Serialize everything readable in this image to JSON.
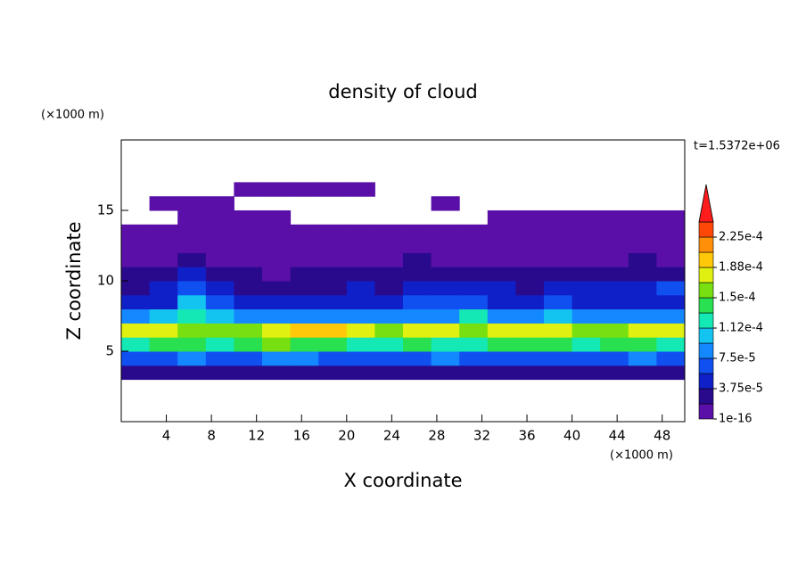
{
  "chart_data": {
    "type": "contour",
    "title": "density of cloud",
    "x_unit": "(×1000 m)",
    "y_unit": "(×1000 m)",
    "xlabel": "X coordinate",
    "ylabel": "Z coordinate",
    "annotation": "t=1.5372e+06",
    "xlim": [
      0,
      50
    ],
    "ylim": [
      0,
      20
    ],
    "xticks": [
      4,
      8,
      12,
      16,
      20,
      24,
      28,
      32,
      36,
      40,
      44,
      48
    ],
    "yticks": [
      5,
      10,
      15
    ],
    "x": [
      1.25,
      3.75,
      6.25,
      8.75,
      11.25,
      13.75,
      16.25,
      18.75,
      21.25,
      23.75,
      26.25,
      28.75,
      31.25,
      33.75,
      36.25,
      38.75,
      41.25,
      43.75,
      46.25,
      48.75
    ],
    "z": [
      3.5,
      4.5,
      5.5,
      6.5,
      7.5,
      8.5,
      9.5,
      10.5,
      11.5,
      12.5,
      13.5,
      14.5,
      15.5,
      16.5
    ],
    "values": [
      [
        2e-05,
        2.5e-05,
        2e-05,
        3e-05,
        2e-05,
        2.5e-05,
        2e-05,
        2e-05,
        2.5e-05,
        2e-05,
        2e-05,
        2.5e-05,
        2e-05,
        2e-05,
        2.5e-05,
        2e-05,
        3e-05,
        2e-05,
        2.5e-05,
        2e-05
      ],
      [
        7e-05,
        6.5e-05,
        8e-05,
        7e-05,
        6e-05,
        7.5e-05,
        8e-05,
        7e-05,
        7e-05,
        6.5e-05,
        7e-05,
        7.5e-05,
        7e-05,
        6.5e-05,
        7e-05,
        7e-05,
        6e-05,
        7e-05,
        7.5e-05,
        7e-05
      ],
      [
        0.00013,
        0.00014,
        0.000145,
        0.00012,
        0.000135,
        0.00015,
        0.000145,
        0.00014,
        0.00013,
        0.000125,
        0.000135,
        0.00013,
        0.00012,
        0.00014,
        0.000145,
        0.000135,
        0.00013,
        0.00014,
        0.000135,
        0.00013
      ],
      [
        0.00017,
        0.000175,
        0.00016,
        0.000155,
        0.000165,
        0.000175,
        0.00019,
        0.000195,
        0.00018,
        0.00016,
        0.00017,
        0.000175,
        0.00015,
        0.00017,
        0.00018,
        0.000175,
        0.00016,
        0.000165,
        0.00017,
        0.000175
      ],
      [
        9e-05,
        0.0001,
        0.00013,
        0.00011,
        8e-05,
        9e-05,
        8.5e-05,
        9e-05,
        8e-05,
        7.5e-05,
        8e-05,
        9e-05,
        0.000115,
        8e-05,
        7.5e-05,
        0.000105,
        8e-05,
        7.5e-05,
        8.5e-05,
        9e-05
      ],
      [
        5e-05,
        5.5e-05,
        0.00011,
        7e-05,
        5e-05,
        4.5e-05,
        5e-05,
        5.5e-05,
        5e-05,
        4.5e-05,
        6e-05,
        6.5e-05,
        7e-05,
        5e-05,
        4.5e-05,
        7e-05,
        5e-05,
        4.5e-05,
        5e-05,
        5.5e-05
      ],
      [
        3.5e-05,
        4e-05,
        6.5e-05,
        5e-05,
        3.5e-05,
        3e-05,
        3.5e-05,
        3e-05,
        4e-05,
        3e-05,
        4.5e-05,
        5e-05,
        5.5e-05,
        4e-05,
        3.5e-05,
        4e-05,
        4.5e-05,
        5e-05,
        5.5e-05,
        6e-05
      ],
      [
        2e-05,
        2.5e-05,
        4e-05,
        3e-05,
        2e-05,
        1.5e-05,
        2e-05,
        2.5e-05,
        2e-05,
        2e-05,
        3e-05,
        2.5e-05,
        3e-05,
        2e-05,
        2e-05,
        2.5e-05,
        2e-05,
        3e-05,
        2.5e-05,
        2e-05
      ],
      [
        1.5e-05,
        1e-05,
        2e-05,
        1.5e-05,
        1e-05,
        1e-05,
        1.5e-05,
        1e-05,
        1.2e-05,
        1e-05,
        2e-05,
        1.5e-05,
        1e-05,
        1e-05,
        1.5e-05,
        1e-05,
        1e-05,
        1.5e-05,
        2e-05,
        1e-05
      ],
      [
        5e-06,
        5e-06,
        6e-06,
        5e-06,
        5e-06,
        5e-06,
        6e-06,
        5e-06,
        5e-06,
        5e-06,
        6e-06,
        5e-06,
        5e-06,
        5e-06,
        6e-06,
        5e-06,
        5e-06,
        6e-06,
        5e-06,
        5e-06
      ],
      [
        3e-06,
        3e-06,
        3e-06,
        3e-06,
        3e-06,
        3e-06,
        3e-06,
        3e-06,
        3e-06,
        3e-06,
        3e-06,
        3e-06,
        3e-06,
        3e-06,
        3e-06,
        3e-06,
        3e-06,
        3e-06,
        3e-06,
        3e-06
      ],
      [
        null,
        null,
        1e-06,
        1e-06,
        1e-06,
        1e-06,
        null,
        null,
        null,
        null,
        null,
        null,
        null,
        1e-06,
        1e-06,
        1e-06,
        1e-06,
        1e-06,
        1e-06,
        1e-06
      ],
      [
        null,
        1e-06,
        1e-06,
        1e-06,
        null,
        null,
        null,
        null,
        null,
        null,
        null,
        1e-06,
        null,
        null,
        null,
        null,
        null,
        null,
        null,
        null
      ],
      [
        null,
        null,
        null,
        null,
        1e-06,
        1e-06,
        1e-06,
        1e-06,
        1e-06,
        null,
        null,
        null,
        null,
        null,
        null,
        null,
        null,
        null,
        null,
        null
      ]
    ],
    "colorbar": {
      "levels": [
        1e-16,
        1.875e-05,
        3.75e-05,
        5.625e-05,
        7.5e-05,
        9.375e-05,
        0.0001125,
        0.00013125,
        0.00015,
        0.00016875,
        0.0001875,
        0.00020625,
        0.000225,
        0.00024375
      ],
      "colors": [
        "#5a0fa8",
        "#2a0a8c",
        "#1020c8",
        "#1050f0",
        "#1488ff",
        "#14c4f0",
        "#14e8b4",
        "#28e050",
        "#78e010",
        "#e0f010",
        "#ffc808",
        "#ff9008",
        "#ff4808",
        "#ff1c1c",
        "#f0a0a0"
      ],
      "ticks": [
        {
          "value": 1e-16,
          "label": "1e-16"
        },
        {
          "value": 3.75e-05,
          "label": "3.75e-5"
        },
        {
          "value": 7.5e-05,
          "label": "7.5e-5"
        },
        {
          "value": 0.0001125,
          "label": "1.12e-4"
        },
        {
          "value": 0.00015,
          "label": "1.5e-4"
        },
        {
          "value": 0.0001875,
          "label": "1.88e-4"
        },
        {
          "value": 0.000225,
          "label": "2.25e-4"
        }
      ]
    }
  }
}
